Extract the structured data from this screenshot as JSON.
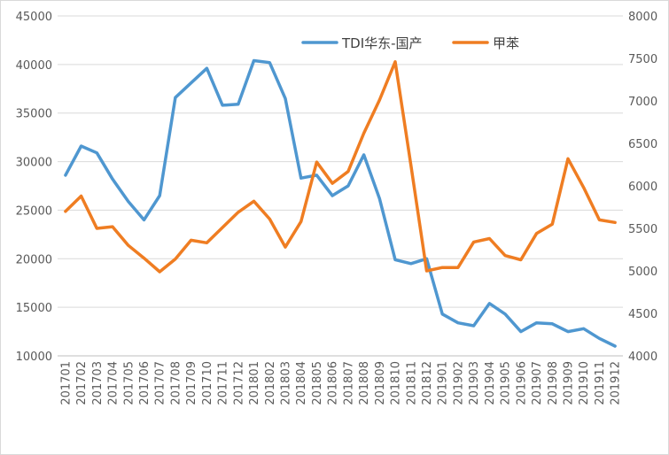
{
  "chart_data": {
    "type": "line",
    "categories": [
      "201701",
      "201702",
      "201703",
      "201704",
      "201705",
      "201706",
      "201707",
      "201708",
      "201709",
      "201710",
      "201711",
      "201712",
      "201801",
      "201802",
      "201803",
      "201804",
      "201805",
      "201806",
      "201807",
      "201808",
      "201809",
      "201810",
      "201811",
      "201812",
      "201901",
      "201902",
      "201903",
      "201904",
      "201905",
      "201906",
      "201907",
      "201908",
      "201909",
      "201910",
      "201911",
      "201912"
    ],
    "y_left": {
      "min": 10000,
      "max": 45000,
      "step": 5000,
      "ticks": [
        "10000",
        "15000",
        "20000",
        "25000",
        "30000",
        "35000",
        "40000",
        "45000"
      ]
    },
    "y_right": {
      "min": 4000,
      "max": 8000,
      "step": 500,
      "ticks": [
        "4000",
        "4500",
        "5000",
        "5500",
        "6000",
        "6500",
        "7000",
        "7500",
        "8000"
      ]
    },
    "grid": true,
    "legend_position": "top-right",
    "series": [
      {
        "name": "TDI华东-国产",
        "axis": "left",
        "color": "#4f97d0",
        "values": [
          28600,
          31600,
          30900,
          28200,
          25900,
          24000,
          26500,
          36600,
          38100,
          39600,
          35800,
          35900,
          40400,
          40200,
          36500,
          28300,
          28600,
          26500,
          27500,
          30700,
          26200,
          19900,
          19500,
          20000,
          14300,
          13400,
          13100,
          15400,
          14300,
          12500,
          13400,
          13300,
          12500,
          12800,
          11800,
          11000
        ]
      },
      {
        "name": "甲苯",
        "axis": "right",
        "color": "#ef7d22",
        "values": [
          5700,
          5880,
          5500,
          5520,
          5300,
          5150,
          4990,
          5140,
          5360,
          5330,
          5510,
          5690,
          5820,
          5610,
          5280,
          5580,
          6280,
          6030,
          6170,
          6620,
          7010,
          7460,
          6240,
          5000,
          5040,
          5040,
          5340,
          5380,
          5180,
          5130,
          5440,
          5550,
          6320,
          5980,
          5600,
          5570
        ]
      }
    ]
  }
}
